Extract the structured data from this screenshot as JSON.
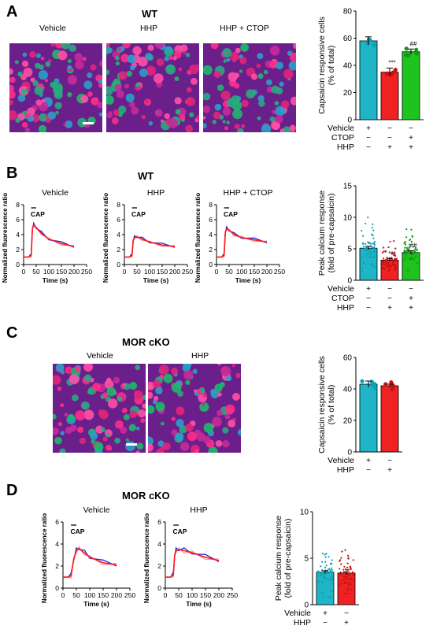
{
  "panels": {
    "A": {
      "letter": "A",
      "title": "WT",
      "image_labels": [
        "Vehicle",
        "HHP",
        "HHP + CTOP"
      ],
      "bar": {
        "ylabel": "Capsaicin responsive cells\n(% of total)",
        "ylim": [
          0,
          80
        ],
        "yticks": [
          "0",
          "20",
          "40",
          "60",
          "80"
        ],
        "bars": [
          {
            "value": 58,
            "err": 3,
            "color": "#1fb5c6",
            "sig": ""
          },
          {
            "value": 35,
            "err": 3,
            "color": "#ee2222",
            "sig": "***"
          },
          {
            "value": 50,
            "err": 2,
            "color": "#1ec31e",
            "sig": "##"
          }
        ],
        "rows": [
          {
            "name": "Vehicle",
            "marks": [
              "+",
              "−",
              "−"
            ]
          },
          {
            "name": "CTOP",
            "marks": [
              "−",
              "−",
              "+"
            ]
          },
          {
            "name": "HHP",
            "marks": [
              "−",
              "+",
              "+"
            ]
          }
        ]
      }
    },
    "B": {
      "letter": "B",
      "title": "WT",
      "trace_titles": [
        "Vehicle",
        "HHP",
        "HHP + CTOP"
      ],
      "trace_ylabel": "Normalized fluorescence ratio",
      "trace_xlabel": "Time (s)",
      "cap_label": "CAP",
      "bar": {
        "ylabel": "Peak calcium response\n(fold of pre-capsaicin)",
        "ylim": [
          0,
          15
        ],
        "yticks": [
          "0",
          "5",
          "10",
          "15"
        ],
        "bars": [
          {
            "value": 5.1,
            "err": 0.3,
            "color": "#1fb5c6",
            "sig": ""
          },
          {
            "value": 3.2,
            "err": 0.2,
            "color": "#ee2222",
            "sig": "***"
          },
          {
            "value": 4.4,
            "err": 0.3,
            "color": "#1ec31e",
            "sig": "##"
          }
        ],
        "rows": [
          {
            "name": "Vehicle",
            "marks": [
              "+",
              "−",
              "−"
            ]
          },
          {
            "name": "CTOP",
            "marks": [
              "−",
              "−",
              "+"
            ]
          },
          {
            "name": "HHP",
            "marks": [
              "−",
              "+",
              "+"
            ]
          }
        ]
      }
    },
    "C": {
      "letter": "C",
      "title": "MOR cKO",
      "image_labels": [
        "Vehicle",
        "HHP"
      ],
      "bar": {
        "ylabel": "Capsaicin responsive cells\n(% of total)",
        "ylim": [
          0,
          60
        ],
        "yticks": [
          "0",
          "20",
          "40",
          "60"
        ],
        "bars": [
          {
            "value": 43,
            "err": 2,
            "color": "#1fb5c6",
            "sig": ""
          },
          {
            "value": 42,
            "err": 1,
            "color": "#ee2222",
            "sig": ""
          }
        ],
        "rows": [
          {
            "name": "Vehicle",
            "marks": [
              "+",
              "−"
            ]
          },
          {
            "name": "HHP",
            "marks": [
              "−",
              "+"
            ]
          }
        ]
      }
    },
    "D": {
      "letter": "D",
      "title": "MOR cKO",
      "trace_titles": [
        "Vehicle",
        "HHP"
      ],
      "trace_ylabel": "Normalized fluorescence ratio",
      "trace_xlabel": "Time (s)",
      "cap_label": "CAP",
      "bar": {
        "ylabel": "Peak calcium response\n(fold of pre-capsaicin)",
        "ylim": [
          0,
          10
        ],
        "yticks": [
          "0",
          "5",
          "10"
        ],
        "bars": [
          {
            "value": 3.5,
            "err": 0.15,
            "color": "#1fb5c6",
            "sig": ""
          },
          {
            "value": 3.4,
            "err": 0.15,
            "color": "#ee2222",
            "sig": ""
          }
        ],
        "rows": [
          {
            "name": "Vehicle",
            "marks": [
              "+",
              "−"
            ]
          },
          {
            "name": "HHP",
            "marks": [
              "−",
              "+"
            ]
          }
        ]
      }
    }
  },
  "chart_data": [
    {
      "type": "bar",
      "panel": "A",
      "categories": [
        "Vehicle",
        "HHP",
        "HHP + CTOP"
      ],
      "values": [
        58,
        35,
        50
      ],
      "ylabel": "Capsaicin responsive cells (% of total)",
      "ylim": [
        0,
        80
      ]
    },
    {
      "type": "line",
      "panel": "B-Vehicle",
      "title": "Vehicle",
      "xlabel": "Time (s)",
      "ylabel": "Normalized fluorescence ratio",
      "xlim": [
        0,
        250
      ],
      "ylim": [
        0,
        8
      ],
      "x": [
        0,
        20,
        30,
        35,
        40,
        50,
        70,
        100,
        150,
        200
      ],
      "series": [
        {
          "values": [
            1,
            1,
            1.2,
            4.8,
            5.3,
            4.9,
            4.2,
            3.4,
            2.8,
            2.4
          ]
        }
      ]
    },
    {
      "type": "line",
      "panel": "B-HHP",
      "title": "HHP",
      "xlabel": "Time (s)",
      "ylabel": "Normalized fluorescence ratio",
      "xlim": [
        0,
        250
      ],
      "ylim": [
        0,
        8
      ],
      "x": [
        0,
        20,
        30,
        35,
        40,
        50,
        70,
        100,
        150,
        200
      ],
      "series": [
        {
          "values": [
            1,
            1,
            1.2,
            3.2,
            3.6,
            3.7,
            3.4,
            3.0,
            2.6,
            2.4
          ]
        }
      ]
    },
    {
      "type": "line",
      "panel": "B-HHP+CTOP",
      "title": "HHP + CTOP",
      "xlabel": "Time (s)",
      "ylabel": "Normalized fluorescence ratio",
      "xlim": [
        0,
        250
      ],
      "ylim": [
        0,
        8
      ],
      "x": [
        0,
        20,
        30,
        35,
        40,
        50,
        70,
        100,
        150,
        200
      ],
      "series": [
        {
          "values": [
            1,
            1,
            1.2,
            4.3,
            4.8,
            4.6,
            4.0,
            3.6,
            3.3,
            3.0
          ]
        }
      ]
    },
    {
      "type": "bar",
      "panel": "B",
      "categories": [
        "Vehicle",
        "HHP",
        "HHP + CTOP"
      ],
      "values": [
        5.1,
        3.2,
        4.4
      ],
      "ylabel": "Peak calcium response (fold of pre-capsaicin)",
      "ylim": [
        0,
        15
      ]
    },
    {
      "type": "bar",
      "panel": "C",
      "categories": [
        "Vehicle",
        "HHP"
      ],
      "values": [
        43,
        42
      ],
      "ylabel": "Capsaicin responsive cells (% of total)",
      "ylim": [
        0,
        60
      ]
    },
    {
      "type": "line",
      "panel": "D-Vehicle",
      "title": "Vehicle",
      "xlabel": "Time (s)",
      "ylabel": "Normalized fluorescence ratio",
      "xlim": [
        0,
        250
      ],
      "ylim": [
        0,
        6
      ],
      "x": [
        0,
        20,
        30,
        40,
        50,
        60,
        80,
        100,
        150,
        200
      ],
      "series": [
        {
          "values": [
            1,
            1,
            1.1,
            2.6,
            3.4,
            3.6,
            3.2,
            2.8,
            2.3,
            2.1
          ]
        }
      ]
    },
    {
      "type": "line",
      "panel": "D-HHP",
      "title": "HHP",
      "xlabel": "Time (s)",
      "ylabel": "Normalized fluorescence ratio",
      "xlim": [
        0,
        250
      ],
      "ylim": [
        0,
        6
      ],
      "x": [
        0,
        20,
        30,
        35,
        40,
        50,
        70,
        100,
        150,
        200
      ],
      "series": [
        {
          "values": [
            1,
            1,
            1.2,
            3.0,
            3.4,
            3.5,
            3.4,
            3.2,
            2.8,
            2.5
          ]
        }
      ]
    },
    {
      "type": "bar",
      "panel": "D",
      "categories": [
        "Vehicle",
        "HHP"
      ],
      "values": [
        3.5,
        3.4
      ],
      "ylabel": "Peak calcium response (fold of pre-capsaicin)",
      "ylim": [
        0,
        10
      ]
    }
  ]
}
